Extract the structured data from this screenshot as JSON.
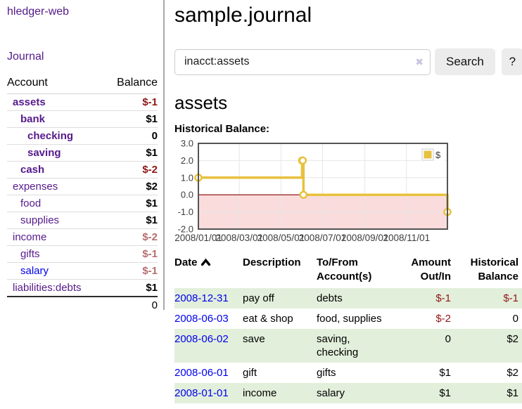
{
  "app": {
    "brand": "hledger-web"
  },
  "sidebar": {
    "nav": {
      "journal": "Journal"
    },
    "table": {
      "account_header": "Account",
      "balance_header": "Balance"
    },
    "accounts": [
      {
        "name": "assets",
        "balance": "$-1"
      },
      {
        "name": "bank",
        "balance": "$1"
      },
      {
        "name": "checking",
        "balance": "0"
      },
      {
        "name": "saving",
        "balance": "$1"
      },
      {
        "name": "cash",
        "balance": "$-2"
      },
      {
        "name": "expenses",
        "balance": "$2"
      },
      {
        "name": "food",
        "balance": "$1"
      },
      {
        "name": "supplies",
        "balance": "$1"
      },
      {
        "name": "income",
        "balance": "$-2"
      },
      {
        "name": "gifts",
        "balance": "$-1"
      },
      {
        "name": "salary",
        "balance": "$-1"
      },
      {
        "name": "liabilities:debts",
        "balance": "$1"
      }
    ],
    "total": "0"
  },
  "main": {
    "title": "sample.journal",
    "search": {
      "value": "inacct:assets",
      "clear_glyph": "✖",
      "button": "Search",
      "help": "?"
    },
    "account_heading": "assets",
    "chart_label": "Historical Balance:"
  },
  "register": {
    "headers": {
      "date": "Date",
      "description": "Description",
      "accounts": "To/From\nAccount(s)",
      "amount": "Amount\nOut/In",
      "balance": "Historical\nBalance"
    },
    "rows": [
      {
        "date": "2008-12-31",
        "description": "pay off",
        "accounts": "debts",
        "amount": "$-1",
        "balance": "$-1"
      },
      {
        "date": "2008-06-03",
        "description": "eat & shop",
        "accounts": "food, supplies",
        "amount": "$-2",
        "balance": "0"
      },
      {
        "date": "2008-06-02",
        "description": "save",
        "accounts": "saving,\nchecking",
        "amount": "0",
        "balance": "$2"
      },
      {
        "date": "2008-06-01",
        "description": "gift",
        "accounts": "gifts",
        "amount": "$1",
        "balance": "$2"
      },
      {
        "date": "2008-01-01",
        "description": "income",
        "accounts": "salary",
        "amount": "$1",
        "balance": "$1"
      }
    ]
  },
  "chart_data": {
    "type": "line",
    "title": "Historical Balance:",
    "x_range": [
      "2008-01-01",
      "2008-12-31"
    ],
    "ylim": [
      -2,
      3
    ],
    "y_ticks": [
      -2,
      -1,
      0,
      1,
      2,
      3
    ],
    "y_tick_labels": [
      "-2.0",
      "-1.0",
      "0.0",
      "1.0",
      "2.0",
      "3.0"
    ],
    "x_ticks": [
      {
        "date": "2008-01-01",
        "label": "2008/01/01"
      },
      {
        "date": "2008-03-01",
        "label": "2008/03/01"
      },
      {
        "date": "2008-05-01",
        "label": "2008/05/01"
      },
      {
        "date": "2008-07-01",
        "label": "2008/07/01"
      },
      {
        "date": "2008-09-01",
        "label": "2008/09/01"
      },
      {
        "date": "2008-11-01",
        "label": "2008/11/01"
      }
    ],
    "series": [
      {
        "name": "$",
        "color": "#e7c13f",
        "step": true,
        "points": [
          [
            "2008-01-01",
            1
          ],
          [
            "2008-06-01",
            2
          ],
          [
            "2008-06-02",
            2
          ],
          [
            "2008-06-03",
            0
          ],
          [
            "2008-12-31",
            -1
          ]
        ]
      }
    ],
    "grid": true,
    "grid_color": "#e6e6e6",
    "border_color": "#545454",
    "zero_line_color": "#8b0000",
    "negative_region_color": "#fbdcdc",
    "axis_label_color": "#3c3c3c",
    "legend_position": "top-right"
  }
}
